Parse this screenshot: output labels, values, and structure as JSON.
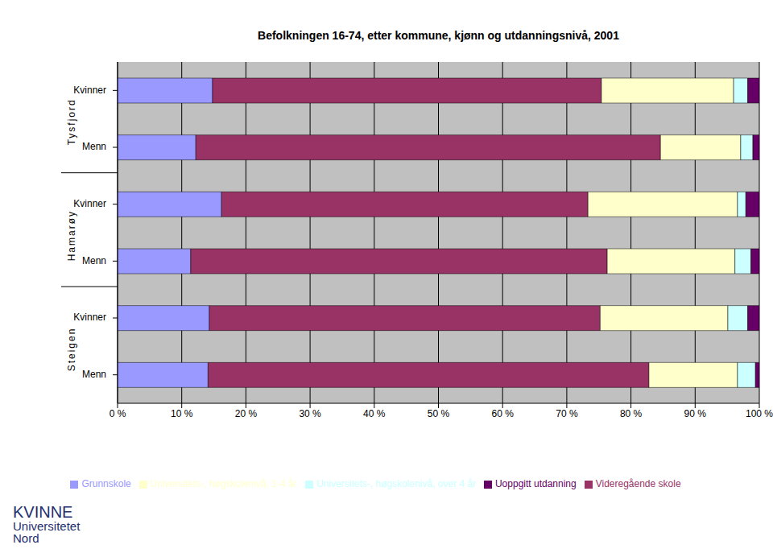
{
  "chart_data": {
    "type": "bar",
    "title": "Befolkningen 16-74, etter kommune, kjønn og utdanningsnivå, 2001",
    "orientation": "horizontal",
    "stacked": true,
    "grid": true,
    "legend": "bottom",
    "categories": [
      "Kvinner",
      "Menn",
      "Kvinner",
      "Menn",
      "Kvinner",
      "Menn"
    ],
    "groups": [
      "Tysfjord",
      "Hamarøy",
      "Steigen"
    ],
    "xlim": [
      0,
      100
    ],
    "xticks": [
      {
        "value": 0,
        "label": "0 %"
      },
      {
        "value": 10,
        "label": "10 %"
      },
      {
        "value": 20,
        "label": "20 %"
      },
      {
        "value": 30,
        "label": "30 %"
      },
      {
        "value": 40,
        "label": "40 %"
      },
      {
        "value": 50,
        "label": "50 %"
      },
      {
        "value": 60,
        "label": "60 %"
      },
      {
        "value": 70,
        "label": "70 %"
      },
      {
        "value": 80,
        "label": "80 %"
      },
      {
        "value": 90,
        "label": "90 %"
      },
      {
        "value": 100,
        "label": "100 %"
      }
    ],
    "series": [
      {
        "name": "Grunnskole",
        "color": "#9999ff",
        "values": [
          14.8,
          12.2,
          16.2,
          11.4,
          14.3,
          14.1
        ]
      },
      {
        "name": "Videregående skole",
        "color": "#993366",
        "values": [
          60.6,
          72.4,
          57.1,
          64.9,
          60.9,
          68.7
        ]
      },
      {
        "name": "Universitets-, høgskolenivå, 1-4 år",
        "color": "#ffffcc",
        "values": [
          20.6,
          12.5,
          23.3,
          19.9,
          19.9,
          13.8
        ]
      },
      {
        "name": "Universitets-, høgskolenivå, over 4 år",
        "color": "#ccffff",
        "values": [
          2.2,
          1.9,
          1.3,
          2.5,
          3.1,
          2.8
        ]
      },
      {
        "name": "Uoppgitt utdanning",
        "color": "#660066",
        "values": [
          1.8,
          1.0,
          2.1,
          1.3,
          1.8,
          0.6
        ]
      }
    ]
  },
  "logo": [
    "KVINNE",
    "Universitetet",
    "Nord"
  ]
}
